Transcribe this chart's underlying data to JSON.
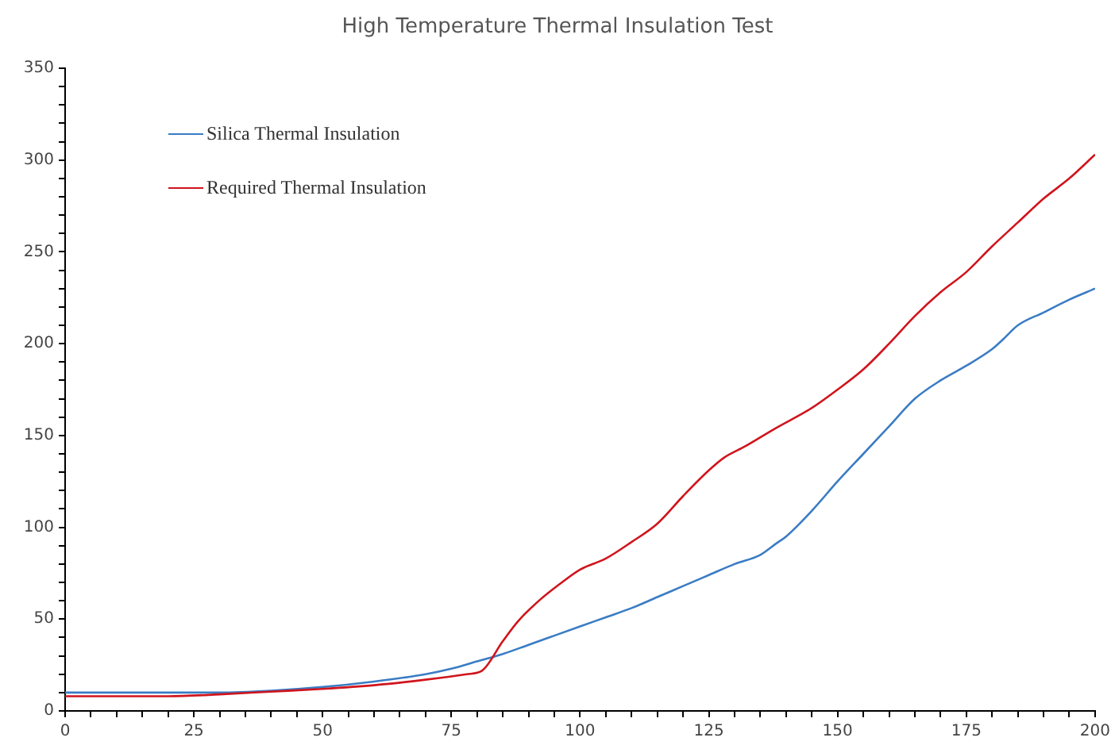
{
  "chart_data": {
    "type": "line",
    "title": "High Temperature Thermal Insulation Test",
    "xlim": [
      0,
      200
    ],
    "xticks": [
      0,
      {
        "value": 5,
        "label": null
      },
      {
        "value": 10,
        "label": null
      },
      {
        "value": 15,
        "label": null
      },
      {
        "value": 20,
        "label": null
      },
      25,
      {
        "value": 30,
        "label": null
      },
      {
        "value": 35,
        "label": null
      },
      {
        "value": 40,
        "label": null
      },
      {
        "value": 45,
        "label": null
      },
      50,
      {
        "value": 55,
        "label": null
      },
      {
        "value": 60,
        "label": null
      },
      {
        "value": 65,
        "label": null
      },
      {
        "value": 70,
        "label": null
      },
      75,
      {
        "value": 80,
        "label": null
      },
      {
        "value": 85,
        "label": null
      },
      {
        "value": 90,
        "label": null
      },
      {
        "value": 95,
        "label": null
      },
      100,
      {
        "value": 105,
        "label": null
      },
      {
        "value": 110,
        "label": null
      },
      {
        "value": 115,
        "label": null
      },
      {
        "value": 120,
        "label": null
      },
      125,
      {
        "value": 130,
        "label": null
      },
      {
        "value": 135,
        "label": null
      },
      {
        "value": 140,
        "label": null
      },
      {
        "value": 145,
        "label": null
      },
      150,
      {
        "value": 155,
        "label": null
      },
      {
        "value": 160,
        "label": null
      },
      {
        "value": 165,
        "label": null
      },
      {
        "value": 170,
        "label": null
      },
      175,
      {
        "value": 180,
        "label": null
      },
      {
        "value": 185,
        "label": null
      },
      {
        "value": 190,
        "label": null
      },
      {
        "value": 195,
        "label": null
      },
      200
    ],
    "ylim": [
      0,
      350
    ],
    "yticks": [
      0,
      {
        "value": 10,
        "label": null
      },
      {
        "value": 20,
        "label": null
      },
      {
        "value": 30,
        "label": null
      },
      {
        "value": 40,
        "label": null
      },
      50,
      {
        "value": 60,
        "label": null
      },
      {
        "value": 70,
        "label": null
      },
      {
        "value": 80,
        "label": null
      },
      {
        "value": 90,
        "label": null
      },
      100,
      {
        "value": 110,
        "label": null
      },
      {
        "value": 120,
        "label": null
      },
      {
        "value": 130,
        "label": null
      },
      {
        "value": 140,
        "label": null
      },
      150,
      {
        "value": 160,
        "label": null
      },
      {
        "value": 170,
        "label": null
      },
      {
        "value": 180,
        "label": null
      },
      {
        "value": 190,
        "label": null
      },
      200,
      {
        "value": 210,
        "label": null
      },
      {
        "value": 220,
        "label": null
      },
      {
        "value": 230,
        "label": null
      },
      {
        "value": 240,
        "label": null
      },
      250,
      {
        "value": 260,
        "label": null
      },
      {
        "value": 270,
        "label": null
      },
      {
        "value": 280,
        "label": null
      },
      {
        "value": 290,
        "label": null
      },
      300,
      {
        "value": 310,
        "label": null
      },
      {
        "value": 320,
        "label": null
      },
      {
        "value": 330,
        "label": null
      },
      {
        "value": 340,
        "label": null
      },
      350
    ],
    "grid": false,
    "legend": "top left",
    "marker": "none",
    "line_style": "solid",
    "series": [
      {
        "name": "Silica Thermal Insulation",
        "color": "#3a7cc4",
        "x": [
          0,
          10,
          20,
          30,
          40,
          50,
          60,
          70,
          75,
          80,
          85,
          90,
          95,
          100,
          105,
          110,
          115,
          120,
          125,
          130,
          135,
          138,
          140,
          145,
          150,
          155,
          160,
          165,
          170,
          175,
          180,
          182,
          185,
          190,
          195,
          200
        ],
        "values": [
          10,
          10,
          10,
          10,
          11,
          13,
          16,
          20,
          23,
          27,
          31,
          36,
          41,
          46,
          51,
          56,
          62,
          68,
          74,
          80,
          85,
          91,
          95,
          109,
          125,
          140,
          155,
          170,
          180,
          188,
          197,
          202,
          210,
          217,
          224,
          230
        ]
      },
      {
        "name": "Required Thermal Insulation",
        "color": "#d0141c",
        "x": [
          0,
          10,
          20,
          30,
          40,
          50,
          60,
          70,
          78,
          81,
          85,
          88,
          92,
          96,
          100,
          105,
          110,
          115,
          120,
          125,
          128,
          132,
          138,
          145,
          150,
          155,
          160,
          165,
          170,
          175,
          180,
          185,
          190,
          195,
          200
        ],
        "values": [
          8,
          8,
          8,
          9,
          10.5,
          12,
          14,
          17,
          20,
          22,
          38,
          49,
          60,
          69,
          77,
          83,
          92,
          102,
          117,
          131,
          138,
          144,
          154,
          165,
          175,
          186,
          200,
          215,
          228,
          239,
          253,
          266,
          279,
          290,
          303
        ]
      }
    ]
  }
}
